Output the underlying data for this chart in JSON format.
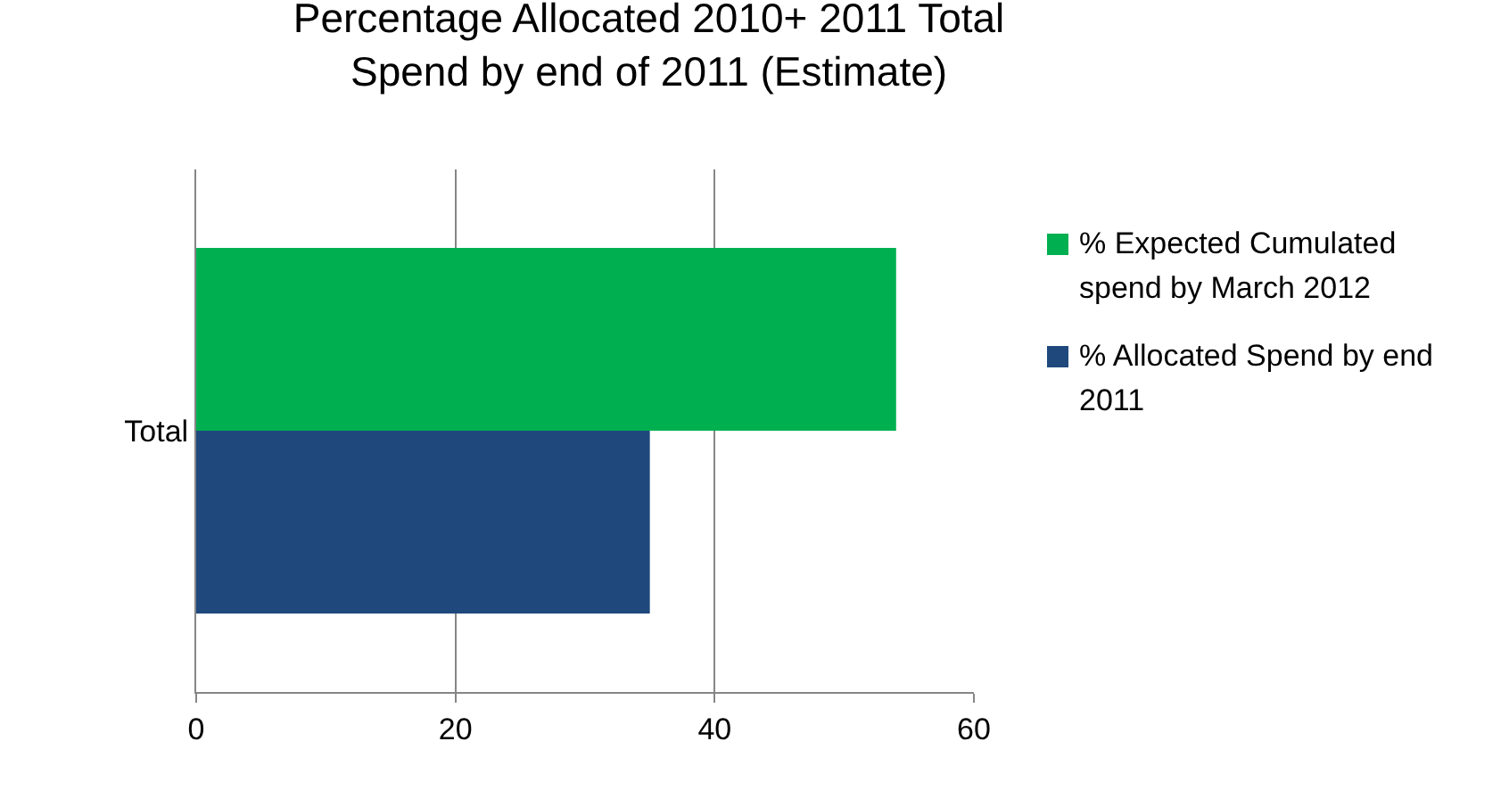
{
  "chart_data": {
    "type": "bar",
    "orientation": "horizontal",
    "title": "Percentage Allocated 2010+ 2011 Total Spend by end of 2011 (Estimate)",
    "categories": [
      "Total"
    ],
    "series": [
      {
        "name": "% Expected Cumulated spend by March 2012",
        "color": "#00b050",
        "values": [
          54
        ]
      },
      {
        "name": "% Allocated Spend by end 2011",
        "color": "#1f497d",
        "values": [
          35
        ]
      }
    ],
    "xlim": [
      0,
      60
    ],
    "xticks": [
      0,
      20,
      40,
      60
    ],
    "grid": "x",
    "legend": "right"
  }
}
